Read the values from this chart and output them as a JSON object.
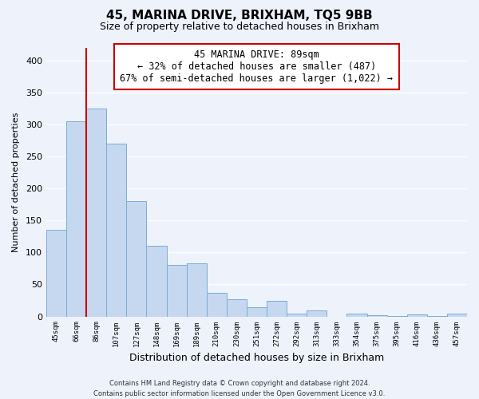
{
  "title": "45, MARINA DRIVE, BRIXHAM, TQ5 9BB",
  "subtitle": "Size of property relative to detached houses in Brixham",
  "xlabel": "Distribution of detached houses by size in Brixham",
  "ylabel": "Number of detached properties",
  "categories": [
    "45sqm",
    "66sqm",
    "86sqm",
    "107sqm",
    "127sqm",
    "148sqm",
    "169sqm",
    "189sqm",
    "210sqm",
    "230sqm",
    "251sqm",
    "272sqm",
    "292sqm",
    "313sqm",
    "333sqm",
    "354sqm",
    "375sqm",
    "395sqm",
    "416sqm",
    "436sqm",
    "457sqm"
  ],
  "values": [
    135,
    305,
    325,
    270,
    181,
    111,
    80,
    83,
    37,
    27,
    15,
    25,
    4,
    10,
    0,
    5,
    2,
    1,
    3,
    1,
    4
  ],
  "bar_color": "#c5d8f0",
  "bar_edge_color": "#7aadd4",
  "highlight_color": "#cc0000",
  "annotation_title": "45 MARINA DRIVE: 89sqm",
  "annotation_line1": "← 32% of detached houses are smaller (487)",
  "annotation_line2": "67% of semi-detached houses are larger (1,022) →",
  "ylim": [
    0,
    420
  ],
  "yticks": [
    0,
    50,
    100,
    150,
    200,
    250,
    300,
    350,
    400
  ],
  "footer_line1": "Contains HM Land Registry data © Crown copyright and database right 2024.",
  "footer_line2": "Contains public sector information licensed under the Open Government Licence v3.0.",
  "background_color": "#eef2fb",
  "plot_bg_color": "#eef2fb",
  "grid_color": "#ffffff"
}
